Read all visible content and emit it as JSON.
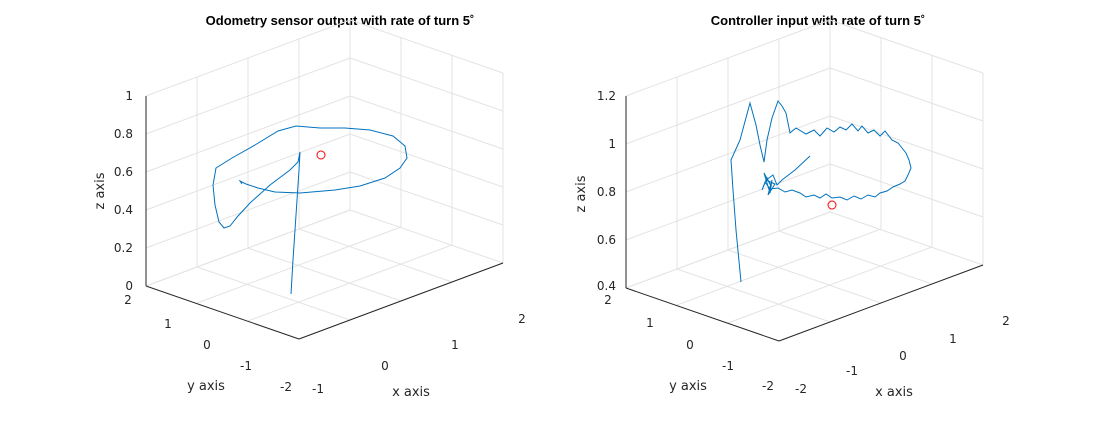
{
  "colors": {
    "line": "#0072bd",
    "marker": "#ff0000",
    "axis": "#262626",
    "grid": "#e3e3e3"
  },
  "chart_data": [
    {
      "type": "line",
      "title": "Odometry sensor output with rate of turn 5˚",
      "xlabel": "x axis",
      "ylabel": "y axis",
      "zlabel": "z axis",
      "xlim": [
        -1,
        2
      ],
      "ylim": [
        -2,
        2
      ],
      "zlim": [
        0,
        1
      ],
      "xticks": [
        "-1",
        "0",
        "1",
        "2"
      ],
      "yticks": [
        "-2",
        "-1",
        "0",
        "1",
        "2"
      ],
      "zticks": [
        "0",
        "0.2",
        "0.4",
        "0.6",
        "0.8",
        "1"
      ],
      "grid": true,
      "marker": {
        "x": 0.2,
        "y": -0.8,
        "z": 0.72
      }
    },
    {
      "type": "line",
      "title": "Controller input with rate of turn 5˚",
      "xlabel": "x axis",
      "ylabel": "y axis",
      "zlabel": "z axis",
      "xlim": [
        -2,
        2
      ],
      "ylim": [
        -2,
        2
      ],
      "zlim": [
        0.4,
        1.2
      ],
      "xticks": [
        "-2",
        "-1",
        "0",
        "1",
        "2"
      ],
      "yticks": [
        "-2",
        "-1",
        "0",
        "1",
        "2"
      ],
      "zticks": [
        "0.4",
        "0.6",
        "0.8",
        "1",
        "1.2"
      ],
      "grid": true,
      "marker": {
        "x": 0.0,
        "y": -0.6,
        "z": 0.78
      }
    }
  ]
}
